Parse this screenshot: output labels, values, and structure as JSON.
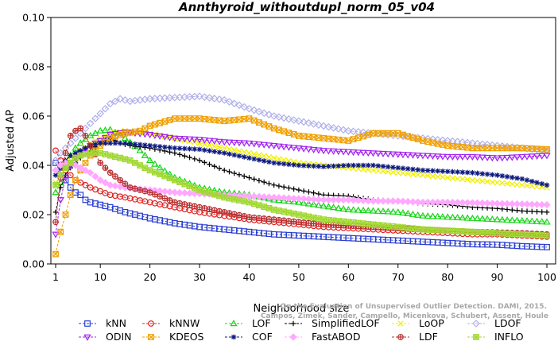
{
  "chart_data": {
    "type": "line",
    "title": "Annthyroid_withoutdupl_norm_05_v04",
    "xlabel": "Neighborhood size",
    "ylabel": "Adjusted AP",
    "xlim": [
      1,
      100
    ],
    "ylim": [
      0.0,
      0.1
    ],
    "xticks": [
      1,
      10,
      20,
      30,
      40,
      50,
      60,
      70,
      80,
      90,
      100
    ],
    "xtick_labels": [
      "1",
      "10",
      "20",
      "30",
      "40",
      "50",
      "60",
      "70",
      "80",
      "90",
      "100"
    ],
    "yticks": [
      0.0,
      0.02,
      0.04,
      0.06,
      0.08,
      0.1
    ],
    "ytick_labels": [
      "0.00",
      "0.02",
      "0.04",
      "0.06",
      "0.08",
      "0.10"
    ],
    "grid": false,
    "legend_position": "bottom",
    "watermark": [
      "Campos, Zimek, Sander, Campello, Micenkova, Schubert, Assent, Houle",
      "On the Evaluation of Unsupervised Outlier Detection. DAMI, 2015."
    ],
    "series": [
      {
        "name": "kNN",
        "color": "#2a3ed0",
        "marker": "square",
        "x": [
          1,
          2,
          3,
          4,
          5,
          6,
          7,
          8,
          10,
          12,
          15,
          20,
          25,
          30,
          35,
          40,
          45,
          50,
          55,
          60,
          65,
          70,
          75,
          80,
          85,
          90,
          95,
          100
        ],
        "y": [
          0.041,
          0.037,
          0.034,
          0.031,
          0.029,
          0.028,
          0.026,
          0.025,
          0.024,
          0.023,
          0.021,
          0.0185,
          0.0165,
          0.015,
          0.014,
          0.013,
          0.012,
          0.0115,
          0.011,
          0.0105,
          0.01,
          0.0095,
          0.009,
          0.0085,
          0.008,
          0.0078,
          0.0072,
          0.0068
        ]
      },
      {
        "name": "kNNW",
        "color": "#e02020",
        "marker": "circle",
        "x": [
          1,
          2,
          3,
          4,
          5,
          6,
          8,
          10,
          12,
          15,
          20,
          25,
          30,
          35,
          40,
          45,
          50,
          55,
          60,
          65,
          70,
          75,
          80,
          85,
          90,
          95,
          100
        ],
        "y": [
          0.046,
          0.042,
          0.038,
          0.036,
          0.034,
          0.033,
          0.031,
          0.0295,
          0.028,
          0.027,
          0.025,
          0.023,
          0.021,
          0.0195,
          0.018,
          0.017,
          0.016,
          0.015,
          0.0145,
          0.014,
          0.0135,
          0.013,
          0.0125,
          0.012,
          0.012,
          0.0115,
          0.011
        ]
      },
      {
        "name": "LOF",
        "color": "#19d419",
        "marker": "triangle",
        "x": [
          1,
          2,
          3,
          4,
          5,
          6,
          8,
          10,
          12,
          15,
          18,
          20,
          22,
          25,
          30,
          35,
          40,
          45,
          50,
          55,
          60,
          65,
          70,
          75,
          80,
          85,
          90,
          95,
          100
        ],
        "y": [
          0.029,
          0.033,
          0.039,
          0.044,
          0.047,
          0.049,
          0.052,
          0.054,
          0.0545,
          0.051,
          0.046,
          0.042,
          0.039,
          0.035,
          0.031,
          0.029,
          0.028,
          0.026,
          0.025,
          0.0235,
          0.022,
          0.0215,
          0.021,
          0.0195,
          0.019,
          0.0185,
          0.018,
          0.0175,
          0.017
        ]
      },
      {
        "name": "SimplifiedLOF",
        "color": "#000000",
        "marker": "plus",
        "x": [
          1,
          2,
          3,
          4,
          5,
          6,
          8,
          10,
          12,
          14,
          16,
          20,
          25,
          30,
          35,
          40,
          45,
          50,
          55,
          60,
          65,
          70,
          75,
          80,
          85,
          90,
          95,
          100
        ],
        "y": [
          0.021,
          0.031,
          0.036,
          0.039,
          0.041,
          0.043,
          0.046,
          0.049,
          0.051,
          0.049,
          0.048,
          0.047,
          0.045,
          0.042,
          0.038,
          0.035,
          0.032,
          0.03,
          0.028,
          0.0275,
          0.026,
          0.0255,
          0.0245,
          0.024,
          0.023,
          0.0225,
          0.0215,
          0.021
        ]
      },
      {
        "name": "LoOP",
        "color": "#f0f000",
        "marker": "x",
        "x": [
          1,
          2,
          3,
          4,
          5,
          6,
          8,
          10,
          12,
          15,
          20,
          25,
          30,
          35,
          40,
          45,
          50,
          55,
          60,
          65,
          70,
          75,
          80,
          85,
          90,
          95,
          100
        ],
        "y": [
          0.033,
          0.036,
          0.039,
          0.042,
          0.044,
          0.046,
          0.049,
          0.051,
          0.053,
          0.054,
          0.053,
          0.051,
          0.049,
          0.047,
          0.045,
          0.043,
          0.041,
          0.04,
          0.039,
          0.038,
          0.037,
          0.036,
          0.035,
          0.034,
          0.033,
          0.032,
          0.031
        ]
      },
      {
        "name": "LDOF",
        "color": "#b0b0ea",
        "marker": "diamond",
        "x": [
          1,
          2,
          3,
          4,
          5,
          6,
          8,
          10,
          12,
          14,
          16,
          20,
          25,
          30,
          35,
          40,
          45,
          50,
          55,
          60,
          65,
          70,
          75,
          80,
          85,
          90,
          95,
          100
        ],
        "y": [
          0.042,
          0.045,
          0.047,
          0.049,
          0.051,
          0.053,
          0.057,
          0.061,
          0.065,
          0.067,
          0.066,
          0.067,
          0.0675,
          0.068,
          0.0665,
          0.063,
          0.06,
          0.058,
          0.056,
          0.054,
          0.053,
          0.052,
          0.051,
          0.05,
          0.049,
          0.048,
          0.047,
          0.046
        ]
      },
      {
        "name": "ODIN",
        "color": "#a020f0",
        "marker": "triangle-down",
        "x": [
          1,
          2,
          3,
          4,
          5,
          6,
          8,
          10,
          12,
          15,
          20,
          25,
          30,
          35,
          40,
          45,
          50,
          55,
          60,
          65,
          70,
          75,
          80,
          85,
          90,
          95,
          100
        ],
        "y": [
          0.012,
          0.026,
          0.035,
          0.04,
          0.043,
          0.045,
          0.048,
          0.05,
          0.0525,
          0.0535,
          0.0525,
          0.051,
          0.0505,
          0.0495,
          0.049,
          0.048,
          0.047,
          0.046,
          0.0455,
          0.045,
          0.0445,
          0.044,
          0.0435,
          0.0435,
          0.043,
          0.0435,
          0.044
        ]
      },
      {
        "name": "KDEOS",
        "color": "#f0a000",
        "marker": "square-x",
        "x": [
          1,
          2,
          3,
          4,
          5,
          6,
          8,
          10,
          12,
          15,
          18,
          20,
          25,
          30,
          35,
          40,
          45,
          50,
          55,
          60,
          65,
          70,
          75,
          80,
          85,
          90,
          95,
          100
        ],
        "y": [
          0.004,
          0.013,
          0.02,
          0.028,
          0.034,
          0.038,
          0.044,
          0.048,
          0.051,
          0.053,
          0.054,
          0.056,
          0.059,
          0.059,
          0.058,
          0.059,
          0.055,
          0.052,
          0.051,
          0.05,
          0.053,
          0.053,
          0.05,
          0.048,
          0.047,
          0.047,
          0.047,
          0.0465
        ]
      },
      {
        "name": "COF",
        "color": "#0d1a80",
        "marker": "star",
        "x": [
          1,
          2,
          3,
          4,
          5,
          6,
          8,
          10,
          12,
          15,
          20,
          25,
          30,
          35,
          40,
          45,
          50,
          55,
          60,
          65,
          70,
          75,
          80,
          85,
          90,
          95,
          100
        ],
        "y": [
          0.036,
          0.039,
          0.042,
          0.044,
          0.045,
          0.046,
          0.048,
          0.049,
          0.049,
          0.049,
          0.048,
          0.047,
          0.0465,
          0.045,
          0.043,
          0.041,
          0.04,
          0.0395,
          0.04,
          0.04,
          0.039,
          0.038,
          0.0375,
          0.037,
          0.036,
          0.0345,
          0.032
        ]
      },
      {
        "name": "FastABOD",
        "color": "#ffa8ff",
        "marker": "diamond-filled",
        "x": [
          1,
          2,
          3,
          4,
          5,
          6,
          8,
          10,
          12,
          15,
          20,
          25,
          30,
          35,
          40,
          45,
          50,
          55,
          60,
          65,
          70,
          75,
          80,
          85,
          90,
          95,
          100
        ],
        "y": [
          0.038,
          0.04,
          0.041,
          0.041,
          0.04,
          0.039,
          0.037,
          0.034,
          0.032,
          0.031,
          0.03,
          0.029,
          0.0285,
          0.028,
          0.0275,
          0.027,
          0.0265,
          0.026,
          0.026,
          0.0255,
          0.0255,
          0.025,
          0.025,
          0.0248,
          0.0245,
          0.0243,
          0.024
        ]
      },
      {
        "name": "LDF",
        "color": "#b83030",
        "marker": "circle-plus",
        "x": [
          1,
          2,
          3,
          4,
          5,
          6,
          7,
          8,
          10,
          12,
          14,
          16,
          20,
          25,
          30,
          35,
          40,
          45,
          50,
          55,
          60,
          65,
          70,
          75,
          80,
          85,
          90,
          95,
          100
        ],
        "y": [
          0.017,
          0.035,
          0.045,
          0.052,
          0.054,
          0.055,
          0.052,
          0.048,
          0.041,
          0.037,
          0.034,
          0.031,
          0.029,
          0.025,
          0.023,
          0.021,
          0.019,
          0.018,
          0.017,
          0.016,
          0.0155,
          0.015,
          0.0145,
          0.014,
          0.0135,
          0.013,
          0.0128,
          0.0125,
          0.012
        ]
      },
      {
        "name": "INFLO",
        "color": "#a0d830",
        "marker": "square-star",
        "x": [
          1,
          2,
          3,
          4,
          5,
          6,
          8,
          10,
          12,
          14,
          16,
          18,
          20,
          25,
          30,
          35,
          40,
          45,
          50,
          55,
          60,
          65,
          70,
          75,
          80,
          85,
          90,
          95,
          100
        ],
        "y": [
          0.032,
          0.036,
          0.039,
          0.041,
          0.043,
          0.044,
          0.045,
          0.045,
          0.044,
          0.043,
          0.042,
          0.04,
          0.038,
          0.034,
          0.03,
          0.027,
          0.025,
          0.022,
          0.02,
          0.018,
          0.017,
          0.016,
          0.015,
          0.014,
          0.0135,
          0.013,
          0.0125,
          0.012,
          0.0115
        ]
      }
    ],
    "legend_rows": [
      [
        "kNN",
        "kNNW",
        "LOF",
        "SimplifiedLOF",
        "LoOP",
        "LDOF"
      ],
      [
        "ODIN",
        "KDEOS",
        "COF",
        "FastABOD",
        "LDF",
        "INFLO"
      ]
    ]
  }
}
